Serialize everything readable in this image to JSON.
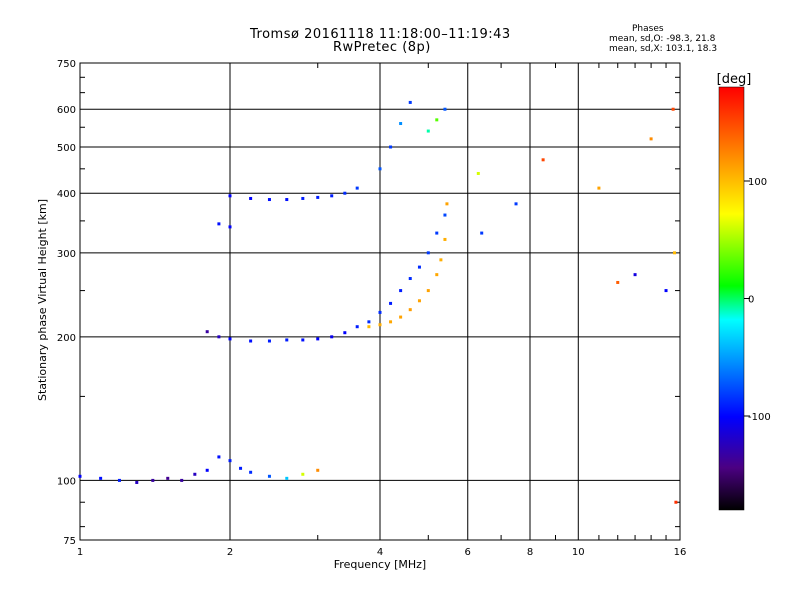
{
  "header": {
    "title_line1": "Tromsø 20161118 11:18:00–11:19:43",
    "title_line2": "RwPretec (8p)"
  },
  "phase_stats": {
    "heading": "Phases",
    "o_line": "mean, sd,O: -98.3, 21.8",
    "x_line": "mean, sd,X: 103.1, 18.3"
  },
  "chart_data": {
    "type": "scatter",
    "xlabel": "Frequency [MHz]",
    "ylabel": "Stationary phase Virtual Height [km]",
    "xscale": "log",
    "yscale": "log",
    "xlim": [
      1,
      16
    ],
    "ylim": [
      75,
      750
    ],
    "xticks": [
      1,
      2,
      4,
      6,
      8,
      10,
      16
    ],
    "xtick_labels": [
      "1",
      "2",
      "4",
      "6",
      "8",
      "10",
      "16"
    ],
    "yticks": [
      75,
      100,
      200,
      300,
      400,
      500,
      600,
      750
    ],
    "ytick_labels": [
      "75",
      "100",
      "200",
      "300",
      "400",
      "500",
      "600",
      "750"
    ],
    "grid": true,
    "colorbar": {
      "label": "[deg]",
      "range": [
        -180,
        180
      ],
      "ticks": [
        100,
        0,
        -100
      ],
      "tick_labels": [
        "100",
        "0",
        "-100"
      ],
      "colors": [
        "#000000",
        "#4b0082",
        "#0000ff",
        "#00ffff",
        "#00ff00",
        "#ffff00",
        "#ff8000",
        "#ff0000"
      ]
    },
    "traces": [
      {
        "name_hint": "low-layer echoes",
        "x": [
          1.0,
          1.1,
          1.2,
          1.3,
          1.4,
          1.5,
          1.6,
          1.7,
          1.8,
          1.9,
          2.0,
          2.1,
          2.2,
          2.4,
          2.6,
          2.8,
          3.0
        ],
        "y": [
          102,
          101,
          100,
          99,
          100,
          101,
          100,
          103,
          105,
          112,
          110,
          106,
          104,
          102,
          101,
          103,
          105
        ],
        "phase": [
          -110,
          -105,
          -100,
          -130,
          -140,
          -145,
          -140,
          -130,
          -110,
          -105,
          -100,
          -100,
          -95,
          -80,
          -40,
          60,
          120
        ]
      },
      {
        "name_hint": "F-layer O trace",
        "x": [
          1.8,
          1.9,
          2.0,
          2.2,
          2.4,
          2.6,
          2.8,
          3.0,
          3.2,
          3.4,
          3.6,
          3.8,
          4.0,
          4.2,
          4.4,
          4.6,
          4.8,
          5.0,
          5.2,
          5.4
        ],
        "y": [
          205,
          200,
          198,
          196,
          196,
          197,
          197,
          198,
          200,
          204,
          210,
          215,
          225,
          235,
          250,
          265,
          280,
          300,
          330,
          360
        ],
        "phase": [
          -140,
          -130,
          -110,
          -105,
          -100,
          -100,
          -105,
          -110,
          -115,
          -110,
          -100,
          -95,
          -95,
          -100,
          -100,
          -95,
          -95,
          -90,
          -90,
          -85
        ]
      },
      {
        "name_hint": "F-layer X trace",
        "x": [
          3.8,
          4.0,
          4.2,
          4.4,
          4.6,
          4.8,
          5.0,
          5.2,
          5.3,
          5.4,
          5.45
        ],
        "y": [
          210,
          212,
          215,
          220,
          228,
          238,
          250,
          270,
          290,
          320,
          380
        ],
        "phase": [
          100,
          105,
          108,
          110,
          112,
          110,
          110,
          108,
          105,
          105,
          110
        ]
      },
      {
        "name_hint": "upper echoes",
        "x": [
          2.0,
          2.2,
          2.4,
          2.6,
          2.8,
          3.0,
          3.2,
          3.4,
          3.6,
          4.0,
          4.2,
          4.4,
          4.6,
          5.0,
          5.2,
          5.4
        ],
        "y": [
          395,
          390,
          388,
          388,
          390,
          392,
          395,
          400,
          410,
          450,
          500,
          560,
          620,
          540,
          570,
          600
        ],
        "phase": [
          -110,
          -110,
          -105,
          -105,
          -100,
          -100,
          -100,
          -95,
          -90,
          -80,
          -90,
          -60,
          -90,
          -10,
          30,
          -80
        ]
      },
      {
        "name_hint": "scattered points",
        "x": [
          1.9,
          2.0,
          6.3,
          6.4,
          7.5,
          8.5,
          11.0,
          12.0,
          13.0,
          14.0,
          15.0,
          15.5,
          15.6,
          15.7
        ],
        "y": [
          345,
          340,
          440,
          330,
          380,
          470,
          410,
          260,
          270,
          520,
          250,
          600,
          300,
          90
        ],
        "phase": [
          -105,
          -110,
          60,
          -90,
          -90,
          150,
          110,
          140,
          -120,
          120,
          -110,
          150,
          100,
          160
        ]
      }
    ]
  }
}
